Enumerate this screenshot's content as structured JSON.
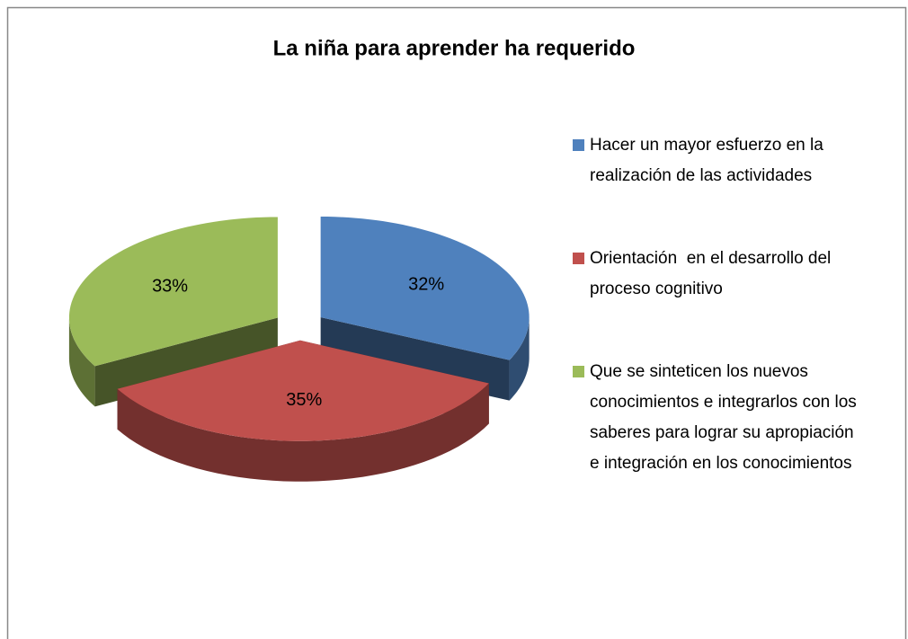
{
  "chart_data": {
    "type": "pie",
    "title": "La niña para aprender ha requerido",
    "categories": [
      "Hacer un mayor esfuerzo en la realización de las actividades",
      "Orientación  en el desarrollo del proceso cognitivo",
      "Que se sinteticen los nuevos conocimientos e integrarlos con los saberes para lograr su apropiación e integración en los conocimientos"
    ],
    "values": [
      32,
      35,
      33
    ],
    "value_labels": [
      "32%",
      "35%",
      "33%"
    ],
    "colors": [
      "#4f81bd",
      "#c0504d",
      "#9bbb59"
    ]
  }
}
